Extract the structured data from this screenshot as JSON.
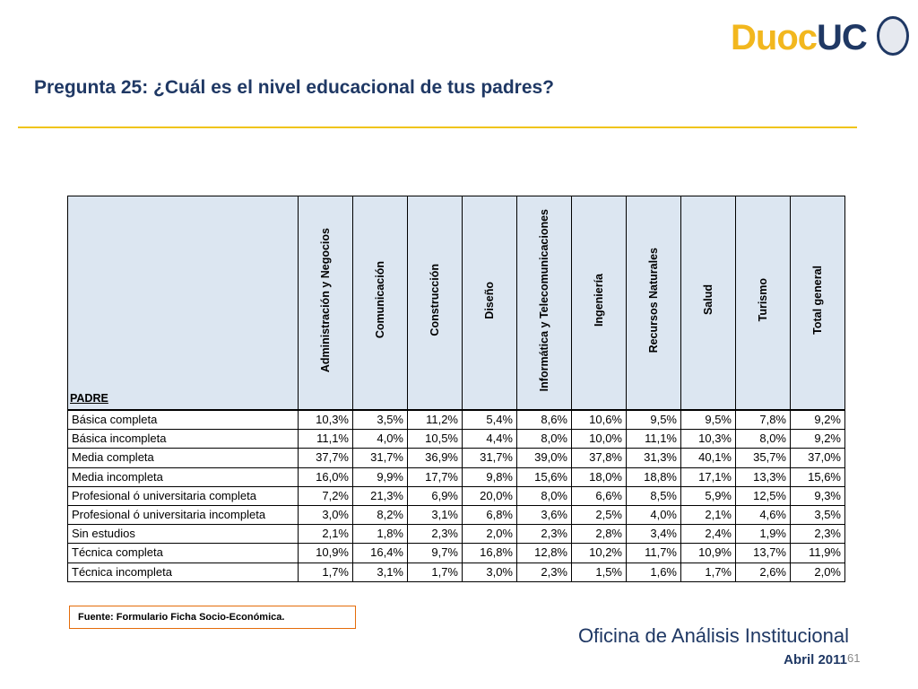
{
  "header": {
    "logo_left": "Duoc",
    "logo_right": "UC",
    "title": "Pregunta 25: ¿Cuál es el nivel educacional de tus padres?"
  },
  "table": {
    "corner": "PADRE",
    "columns": [
      "Administración y Negocios",
      "Comunicación",
      "Construcción",
      "Diseño",
      "Informática y Telecomunicaciones",
      "Ingeniería",
      "Recursos Naturales",
      "Salud",
      "Turismo",
      "Total general"
    ],
    "rows": [
      [
        "Básica completa",
        "10,3%",
        "3,5%",
        "11,2%",
        "5,4%",
        "8,6%",
        "10,6%",
        "9,5%",
        "9,5%",
        "7,8%",
        "9,2%"
      ],
      [
        "Básica incompleta",
        "11,1%",
        "4,0%",
        "10,5%",
        "4,4%",
        "8,0%",
        "10,0%",
        "11,1%",
        "10,3%",
        "8,0%",
        "9,2%"
      ],
      [
        "Media completa",
        "37,7%",
        "31,7%",
        "36,9%",
        "31,7%",
        "39,0%",
        "37,8%",
        "31,3%",
        "40,1%",
        "35,7%",
        "37,0%"
      ],
      [
        "Media incompleta",
        "16,0%",
        "9,9%",
        "17,7%",
        "9,8%",
        "15,6%",
        "18,0%",
        "18,8%",
        "17,1%",
        "13,3%",
        "15,6%"
      ],
      [
        "Profesional ó universitaria completa",
        "7,2%",
        "21,3%",
        "6,9%",
        "20,0%",
        "8,0%",
        "6,6%",
        "8,5%",
        "5,9%",
        "12,5%",
        "9,3%"
      ],
      [
        "Profesional ó universitaria incompleta",
        "3,0%",
        "8,2%",
        "3,1%",
        "6,8%",
        "3,6%",
        "2,5%",
        "4,0%",
        "2,1%",
        "4,6%",
        "3,5%"
      ],
      [
        "Sin estudios",
        "2,1%",
        "1,8%",
        "2,3%",
        "2,0%",
        "2,3%",
        "2,8%",
        "3,4%",
        "2,4%",
        "1,9%",
        "2,3%"
      ],
      [
        "Técnica completa",
        "10,9%",
        "16,4%",
        "9,7%",
        "16,8%",
        "12,8%",
        "10,2%",
        "11,7%",
        "10,9%",
        "13,7%",
        "11,9%"
      ],
      [
        "Técnica incompleta",
        "1,7%",
        "3,1%",
        "1,7%",
        "3,0%",
        "2,3%",
        "1,5%",
        "1,6%",
        "1,7%",
        "2,6%",
        "2,0%"
      ]
    ]
  },
  "footer": {
    "source": "Fuente: Formulario Ficha Socio-Económica.",
    "office": "Oficina de Análisis Institucional",
    "date": "Abril 2011",
    "page": "61"
  }
}
